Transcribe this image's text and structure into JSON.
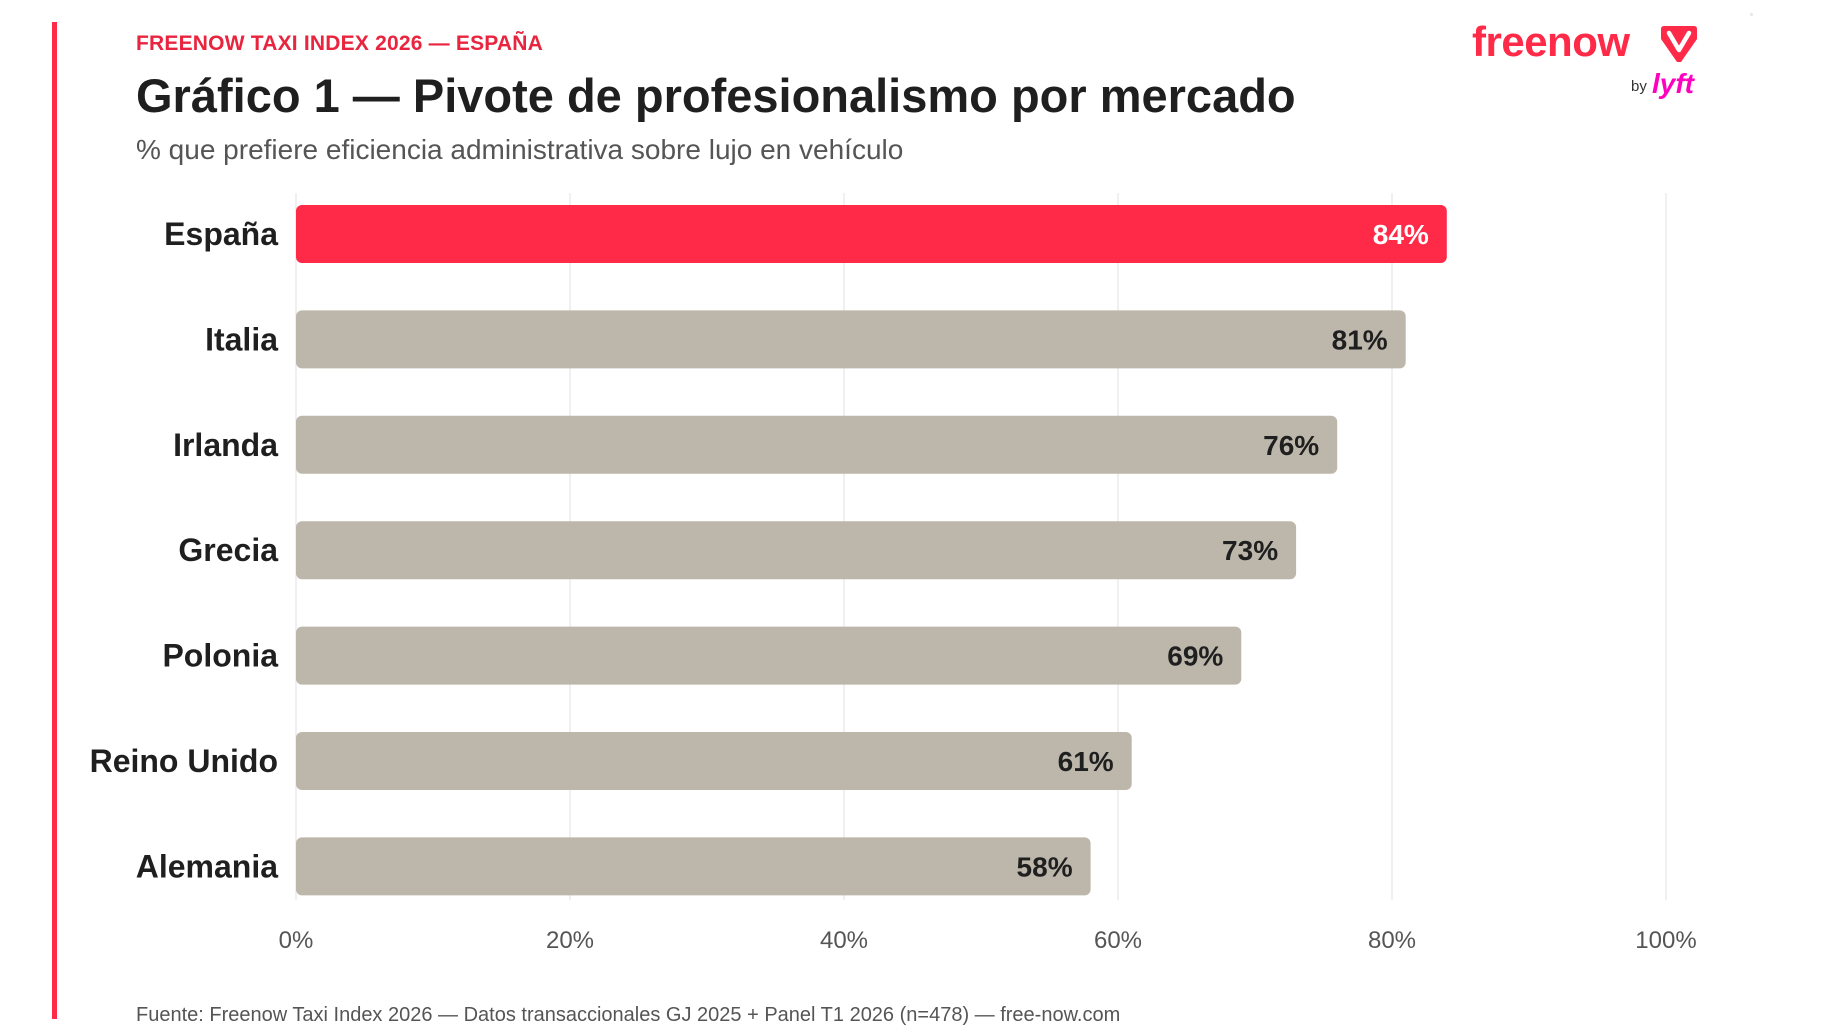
{
  "header": {
    "kicker": "FREENOW TAXI INDEX 2026 — ESPAÑA",
    "title": "Gráfico 1 — Pivote de profesionalismo por mercado",
    "subtitle": "% que prefiere eficiencia administrativa sobre lujo en vehículo"
  },
  "brand": {
    "wordmark": "freenow",
    "by": "by",
    "partner": "lyft",
    "logo_icon": "freenow-logo-icon"
  },
  "colors": {
    "accent": "#ff2a48",
    "highlight_bar": "#ff2a48",
    "bar": "#bdb7ab",
    "grid": "#e6e6e6",
    "partner": "#ff00bf"
  },
  "chart_data": {
    "type": "bar",
    "orientation": "horizontal",
    "categories": [
      "España",
      "Italia",
      "Irlanda",
      "Grecia",
      "Polonia",
      "Reino Unido",
      "Alemania"
    ],
    "values": [
      84,
      81,
      76,
      73,
      69,
      61,
      58
    ],
    "value_labels": [
      "84%",
      "81%",
      "76%",
      "73%",
      "69%",
      "61%",
      "58%"
    ],
    "highlight_index": 0,
    "xlim": [
      0,
      100
    ],
    "x_ticks": [
      0,
      20,
      40,
      60,
      80,
      100
    ],
    "x_tick_labels": [
      "0%",
      "20%",
      "40%",
      "60%",
      "80%",
      "100%"
    ],
    "grid": true,
    "legend": "none"
  },
  "footer": {
    "source": "Fuente: Freenow Taxi Index 2026 — Datos transaccionales GJ 2025 + Panel T1 2026 (n=478) — free-now.com"
  }
}
